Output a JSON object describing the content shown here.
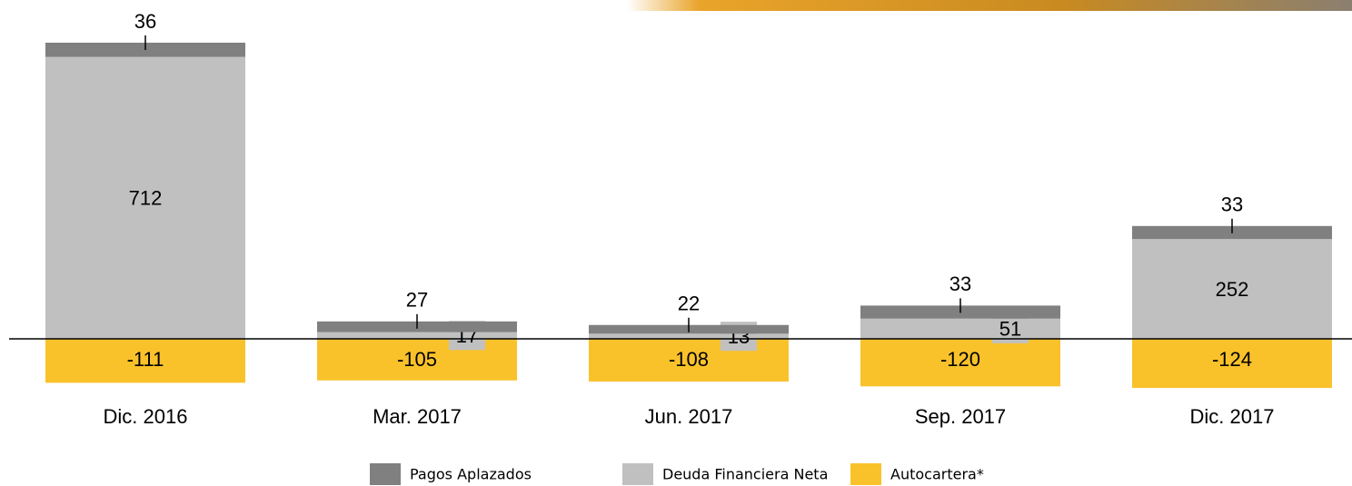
{
  "chart_data": {
    "type": "stacked-bar",
    "categories": [
      "Dic. 2016",
      "Mar. 2017",
      "Jun. 2017",
      "Sep. 2017",
      "Dic. 2017"
    ],
    "series": [
      {
        "name": "Pagos Aplazados",
        "color": "#808080",
        "values": [
          36,
          27,
          22,
          33,
          33
        ]
      },
      {
        "name": "Deuda Financiera Neta",
        "color": "#c0c0c0",
        "values": [
          712,
          17,
          13,
          51,
          252
        ]
      },
      {
        "name": "Autocartera*",
        "color": "#f9c22b",
        "values": [
          -111,
          -105,
          -108,
          -120,
          -124
        ]
      }
    ],
    "legend": "bottom"
  }
}
